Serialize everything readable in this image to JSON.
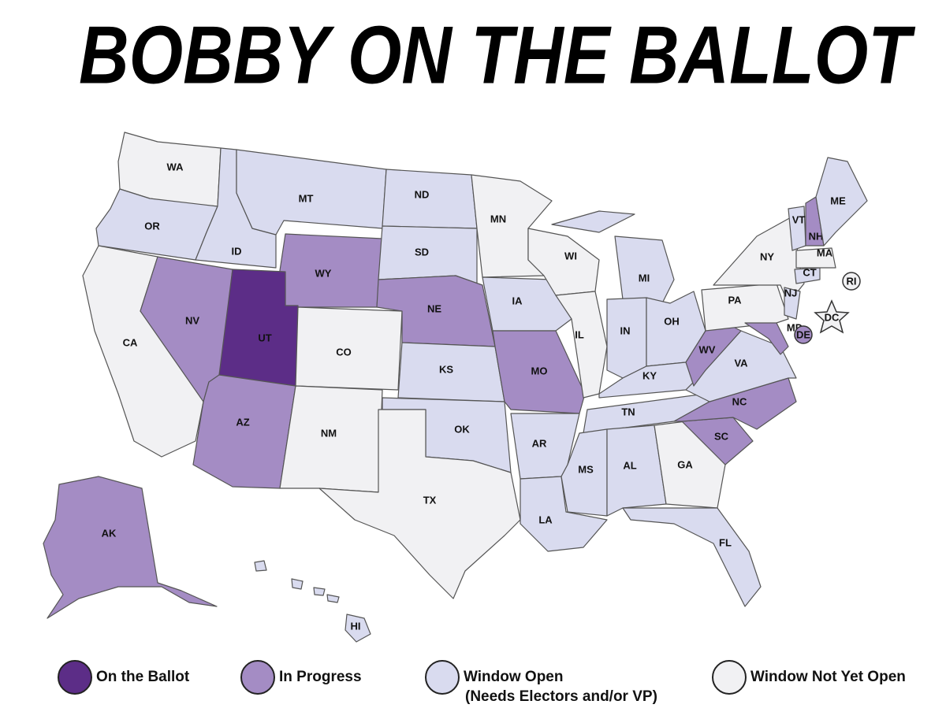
{
  "title": "BOBBY ON THE BALLOT",
  "legend": [
    {
      "label": "On the Ballot",
      "color": "#5c2d87"
    },
    {
      "label": "In Progress",
      "color": "#a48cc4"
    },
    {
      "label": "Window Open",
      "note": "(Needs Electors and/or VP)",
      "color": "#d9dbef"
    },
    {
      "label": "Window Not Yet Open",
      "color": "#f1f1f3"
    }
  ],
  "states": [
    {
      "label": "WA",
      "status": 3
    },
    {
      "label": "OR",
      "status": 2
    },
    {
      "label": "CA",
      "status": 3
    },
    {
      "label": "NV",
      "status": 1
    },
    {
      "label": "ID",
      "status": 2
    },
    {
      "label": "MT",
      "status": 2
    },
    {
      "label": "WY",
      "status": 1
    },
    {
      "label": "UT",
      "status": 0
    },
    {
      "label": "CO",
      "status": 3
    },
    {
      "label": "AZ",
      "status": 1
    },
    {
      "label": "NM",
      "status": 3
    },
    {
      "label": "ND",
      "status": 2
    },
    {
      "label": "SD",
      "status": 2
    },
    {
      "label": "NE",
      "status": 1
    },
    {
      "label": "KS",
      "status": 2
    },
    {
      "label": "OK",
      "status": 2
    },
    {
      "label": "TX",
      "status": 3
    },
    {
      "label": "MN",
      "status": 3
    },
    {
      "label": "IA",
      "status": 2
    },
    {
      "label": "MO",
      "status": 1
    },
    {
      "label": "AR",
      "status": 2
    },
    {
      "label": "LA",
      "status": 2
    },
    {
      "label": "WI",
      "status": 3
    },
    {
      "label": "IL",
      "status": 3
    },
    {
      "label": "MI",
      "status": 2
    },
    {
      "label": "IN",
      "status": 2
    },
    {
      "label": "OH",
      "status": 2
    },
    {
      "label": "KY",
      "status": 2
    },
    {
      "label": "TN",
      "status": 2
    },
    {
      "label": "MS",
      "status": 2
    },
    {
      "label": "AL",
      "status": 2
    },
    {
      "label": "GA",
      "status": 3
    },
    {
      "label": "FL",
      "status": 2
    },
    {
      "label": "SC",
      "status": 1
    },
    {
      "label": "NC",
      "status": 1
    },
    {
      "label": "VA",
      "status": 2
    },
    {
      "label": "WV",
      "status": 1
    },
    {
      "label": "PA",
      "status": 3
    },
    {
      "label": "NY",
      "status": 3
    },
    {
      "label": "MD",
      "status": 1
    },
    {
      "label": "DE",
      "status": 1
    },
    {
      "label": "NJ",
      "status": 2
    },
    {
      "label": "CT",
      "status": 2
    },
    {
      "label": "RI",
      "status": 3
    },
    {
      "label": "MA",
      "status": 3
    },
    {
      "label": "VT",
      "status": 2
    },
    {
      "label": "NH",
      "status": 1
    },
    {
      "label": "ME",
      "status": 2
    },
    {
      "label": "DC",
      "status": 3
    },
    {
      "label": "AK",
      "status": 1
    },
    {
      "label": "HI",
      "status": 2
    }
  ]
}
